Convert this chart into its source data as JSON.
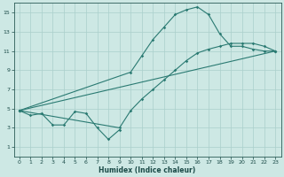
{
  "xlabel": "Humidex (Indice chaleur)",
  "bg_color": "#cde8e4",
  "grid_color": "#aacfcb",
  "line_color": "#2a7a72",
  "xlim": [
    -0.5,
    23.5
  ],
  "ylim": [
    0,
    16
  ],
  "yticks": [
    1,
    3,
    5,
    7,
    9,
    11,
    13,
    15
  ],
  "xticks": [
    0,
    1,
    2,
    3,
    4,
    5,
    6,
    7,
    8,
    9,
    10,
    11,
    12,
    13,
    14,
    15,
    16,
    17,
    18,
    19,
    20,
    21,
    22,
    23
  ],
  "line1_x": [
    0,
    1,
    2,
    3,
    4,
    5,
    6,
    7,
    8,
    9
  ],
  "line1_y": [
    4.8,
    4.3,
    4.5,
    3.3,
    3.3,
    4.7,
    4.5,
    3.0,
    1.8,
    2.8
  ],
  "line2_x": [
    0,
    10,
    11,
    12,
    13,
    14,
    15,
    16,
    17,
    18,
    19,
    20,
    21,
    22,
    23
  ],
  "line2_y": [
    4.8,
    8.8,
    10.5,
    12.2,
    13.5,
    14.8,
    15.3,
    15.6,
    14.8,
    12.8,
    11.5,
    11.5,
    11.2,
    11.0,
    11.0
  ],
  "line3_x": [
    0,
    23
  ],
  "line3_y": [
    4.8,
    11.0
  ],
  "line4_x": [
    0,
    9,
    10,
    11,
    12,
    13,
    14,
    15,
    16,
    17,
    18,
    19,
    20,
    21,
    22,
    23
  ],
  "line4_y": [
    4.8,
    3.0,
    4.8,
    6.0,
    7.0,
    8.0,
    9.0,
    10.0,
    10.8,
    11.2,
    11.5,
    11.8,
    11.8,
    11.8,
    11.5,
    11.0
  ],
  "xlabel_fontsize": 5.5,
  "tick_fontsize": 4.5,
  "linewidth": 0.8,
  "markersize": 1.8
}
